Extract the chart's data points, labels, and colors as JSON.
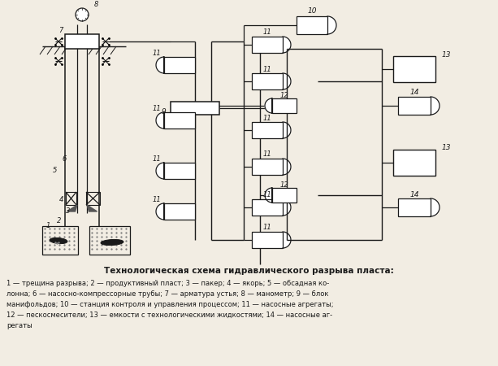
{
  "title": "Технологическая схема гидравлического разрыва пласта:",
  "caption_lines": [
    "1 — трещина разрыва; 2 — продуктивный пласт; 3 — пакер; 4 — якорь; 5 — обсадная ко-",
    "лонна; 6 — насосно-компрессорные трубы; 7 — арматура устья; 8 — манометр; 9 — блок",
    "манифольдов; 10 — станция контроля и управления процессом; 11 — насосные агрегаты;",
    "12 — пескосмесители; 13 — емкости с технологическими жидкостями; 14 — насосные аг-",
    "регаты"
  ],
  "bg_color": "#f2ede3",
  "line_color": "#1a1a1a",
  "font_color": "#1a1a1a"
}
